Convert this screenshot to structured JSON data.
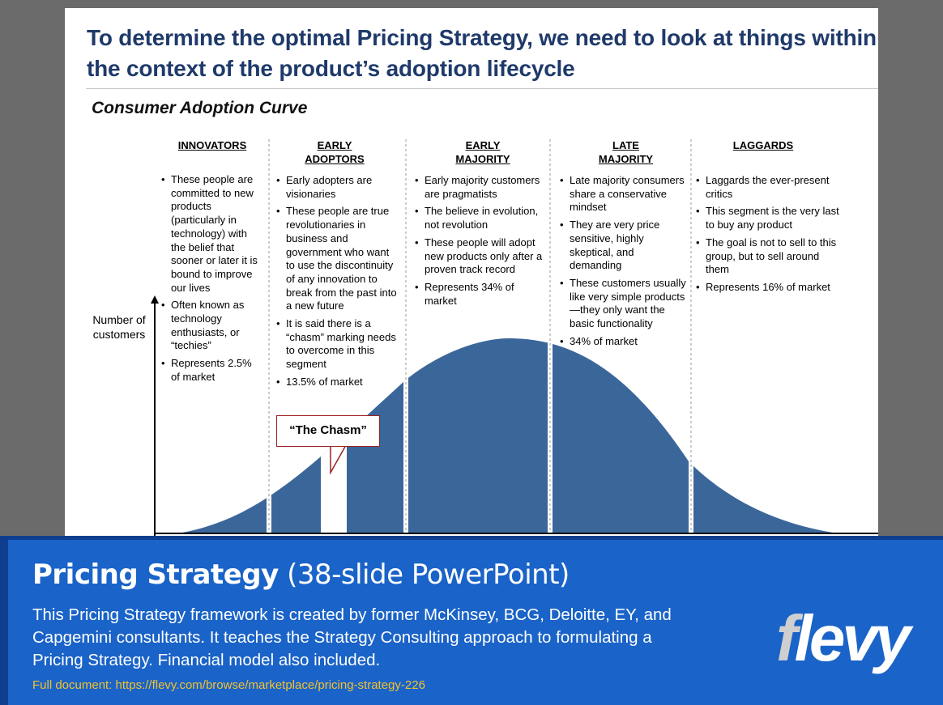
{
  "slide": {
    "title": "To determine the optimal Pricing Strategy, we need to look at things within the context of the product’s adoption lifecycle",
    "subtitle": "Consumer Adoption Curve",
    "y_axis_label": "Number of customers",
    "chasm_label": "“The Chasm”",
    "curve_color": "#3a6699",
    "segments": [
      {
        "heading": "INNOVATORS",
        "bullets": [
          "These people are committed to new products (particularly in technology) with the belief that sooner or later it is bound to improve our lives",
          "Often known as technology enthusiasts, or “techies”",
          "Represents 2.5% of market"
        ]
      },
      {
        "heading": "EARLY ADOPTORS",
        "bullets": [
          "Early adopters are visionaries",
          "These people are true revolutionaries in business and government who want to use the discontinuity of any innovation to break from the past into a new future",
          "It is said there is a “chasm” marking needs to overcome in this segment",
          "13.5% of market"
        ]
      },
      {
        "heading": "EARLY MAJORITY",
        "bullets": [
          "Early majority customers are pragmatists",
          "The believe in evolution, not revolution",
          "These people will adopt new products only after a proven track record",
          "Represents 34% of market"
        ]
      },
      {
        "heading": "LATE MAJORITY",
        "bullets": [
          "Late majority consumers share a conservative mindset",
          "They are very price sensitive, highly skeptical, and demanding",
          "These customers usually like very simple products—they only want the basic functionality",
          "34% of market"
        ]
      },
      {
        "heading": "LAGGARDS",
        "bullets": [
          "Laggards the ever-present critics",
          "This segment is the very last to buy any product",
          "The goal is not to sell to this group, but to sell around them",
          "Represents 16% of market"
        ]
      }
    ]
  },
  "banner": {
    "title_bold": "Pricing Strategy",
    "title_rest": " (38-slide PowerPoint)",
    "description": "This Pricing Strategy framework is created by former McKinsey, BCG, Deloitte, EY, and Capgemini consultants. It teaches the Strategy Consulting approach to formulating a Pricing Strategy. Financial model also included.",
    "link": "Full document: https://flevy.com/browse/marketplace/pricing-strategy-226",
    "logo": "flevy",
    "color": "#1a63c8",
    "link_color": "#f2c230"
  }
}
